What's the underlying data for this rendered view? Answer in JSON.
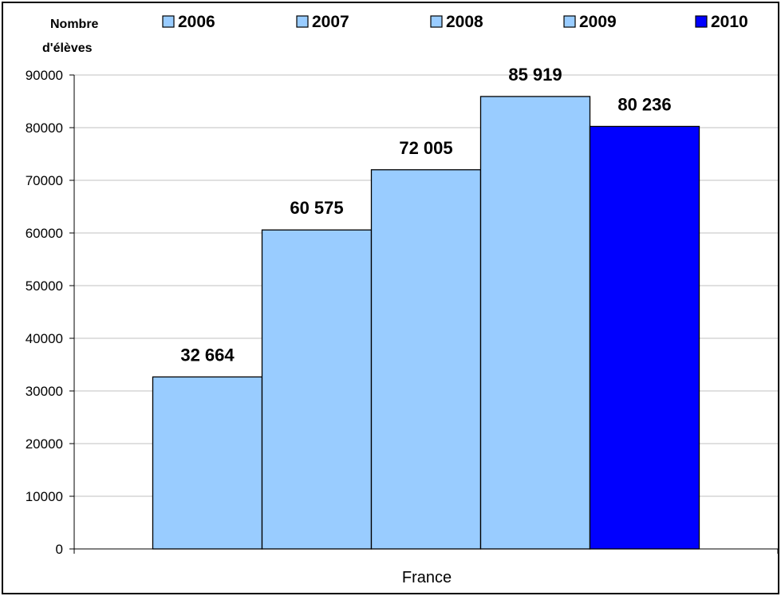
{
  "chart_data": {
    "type": "bar",
    "title": "",
    "ylabel_lines": [
      "Nombre",
      "d'élèves"
    ],
    "xlabel": "",
    "categories": [
      "France"
    ],
    "series": [
      {
        "name": "2006",
        "values": [
          32664
        ],
        "label": "32 664",
        "color": "#99ccff"
      },
      {
        "name": "2007",
        "values": [
          60575
        ],
        "label": "60 575",
        "color": "#99ccff"
      },
      {
        "name": "2008",
        "values": [
          72005
        ],
        "label": "72 005",
        "color": "#99ccff"
      },
      {
        "name": "2009",
        "values": [
          85919
        ],
        "label": "85 919",
        "color": "#99ccff"
      },
      {
        "name": "2010",
        "values": [
          80236
        ],
        "label": "80 236",
        "color": "#0000ff"
      }
    ],
    "ylim": [
      0,
      90000
    ],
    "yticks": [
      0,
      10000,
      20000,
      30000,
      40000,
      50000,
      60000,
      70000,
      80000,
      90000
    ],
    "grid": true,
    "legend_position": "top"
  }
}
